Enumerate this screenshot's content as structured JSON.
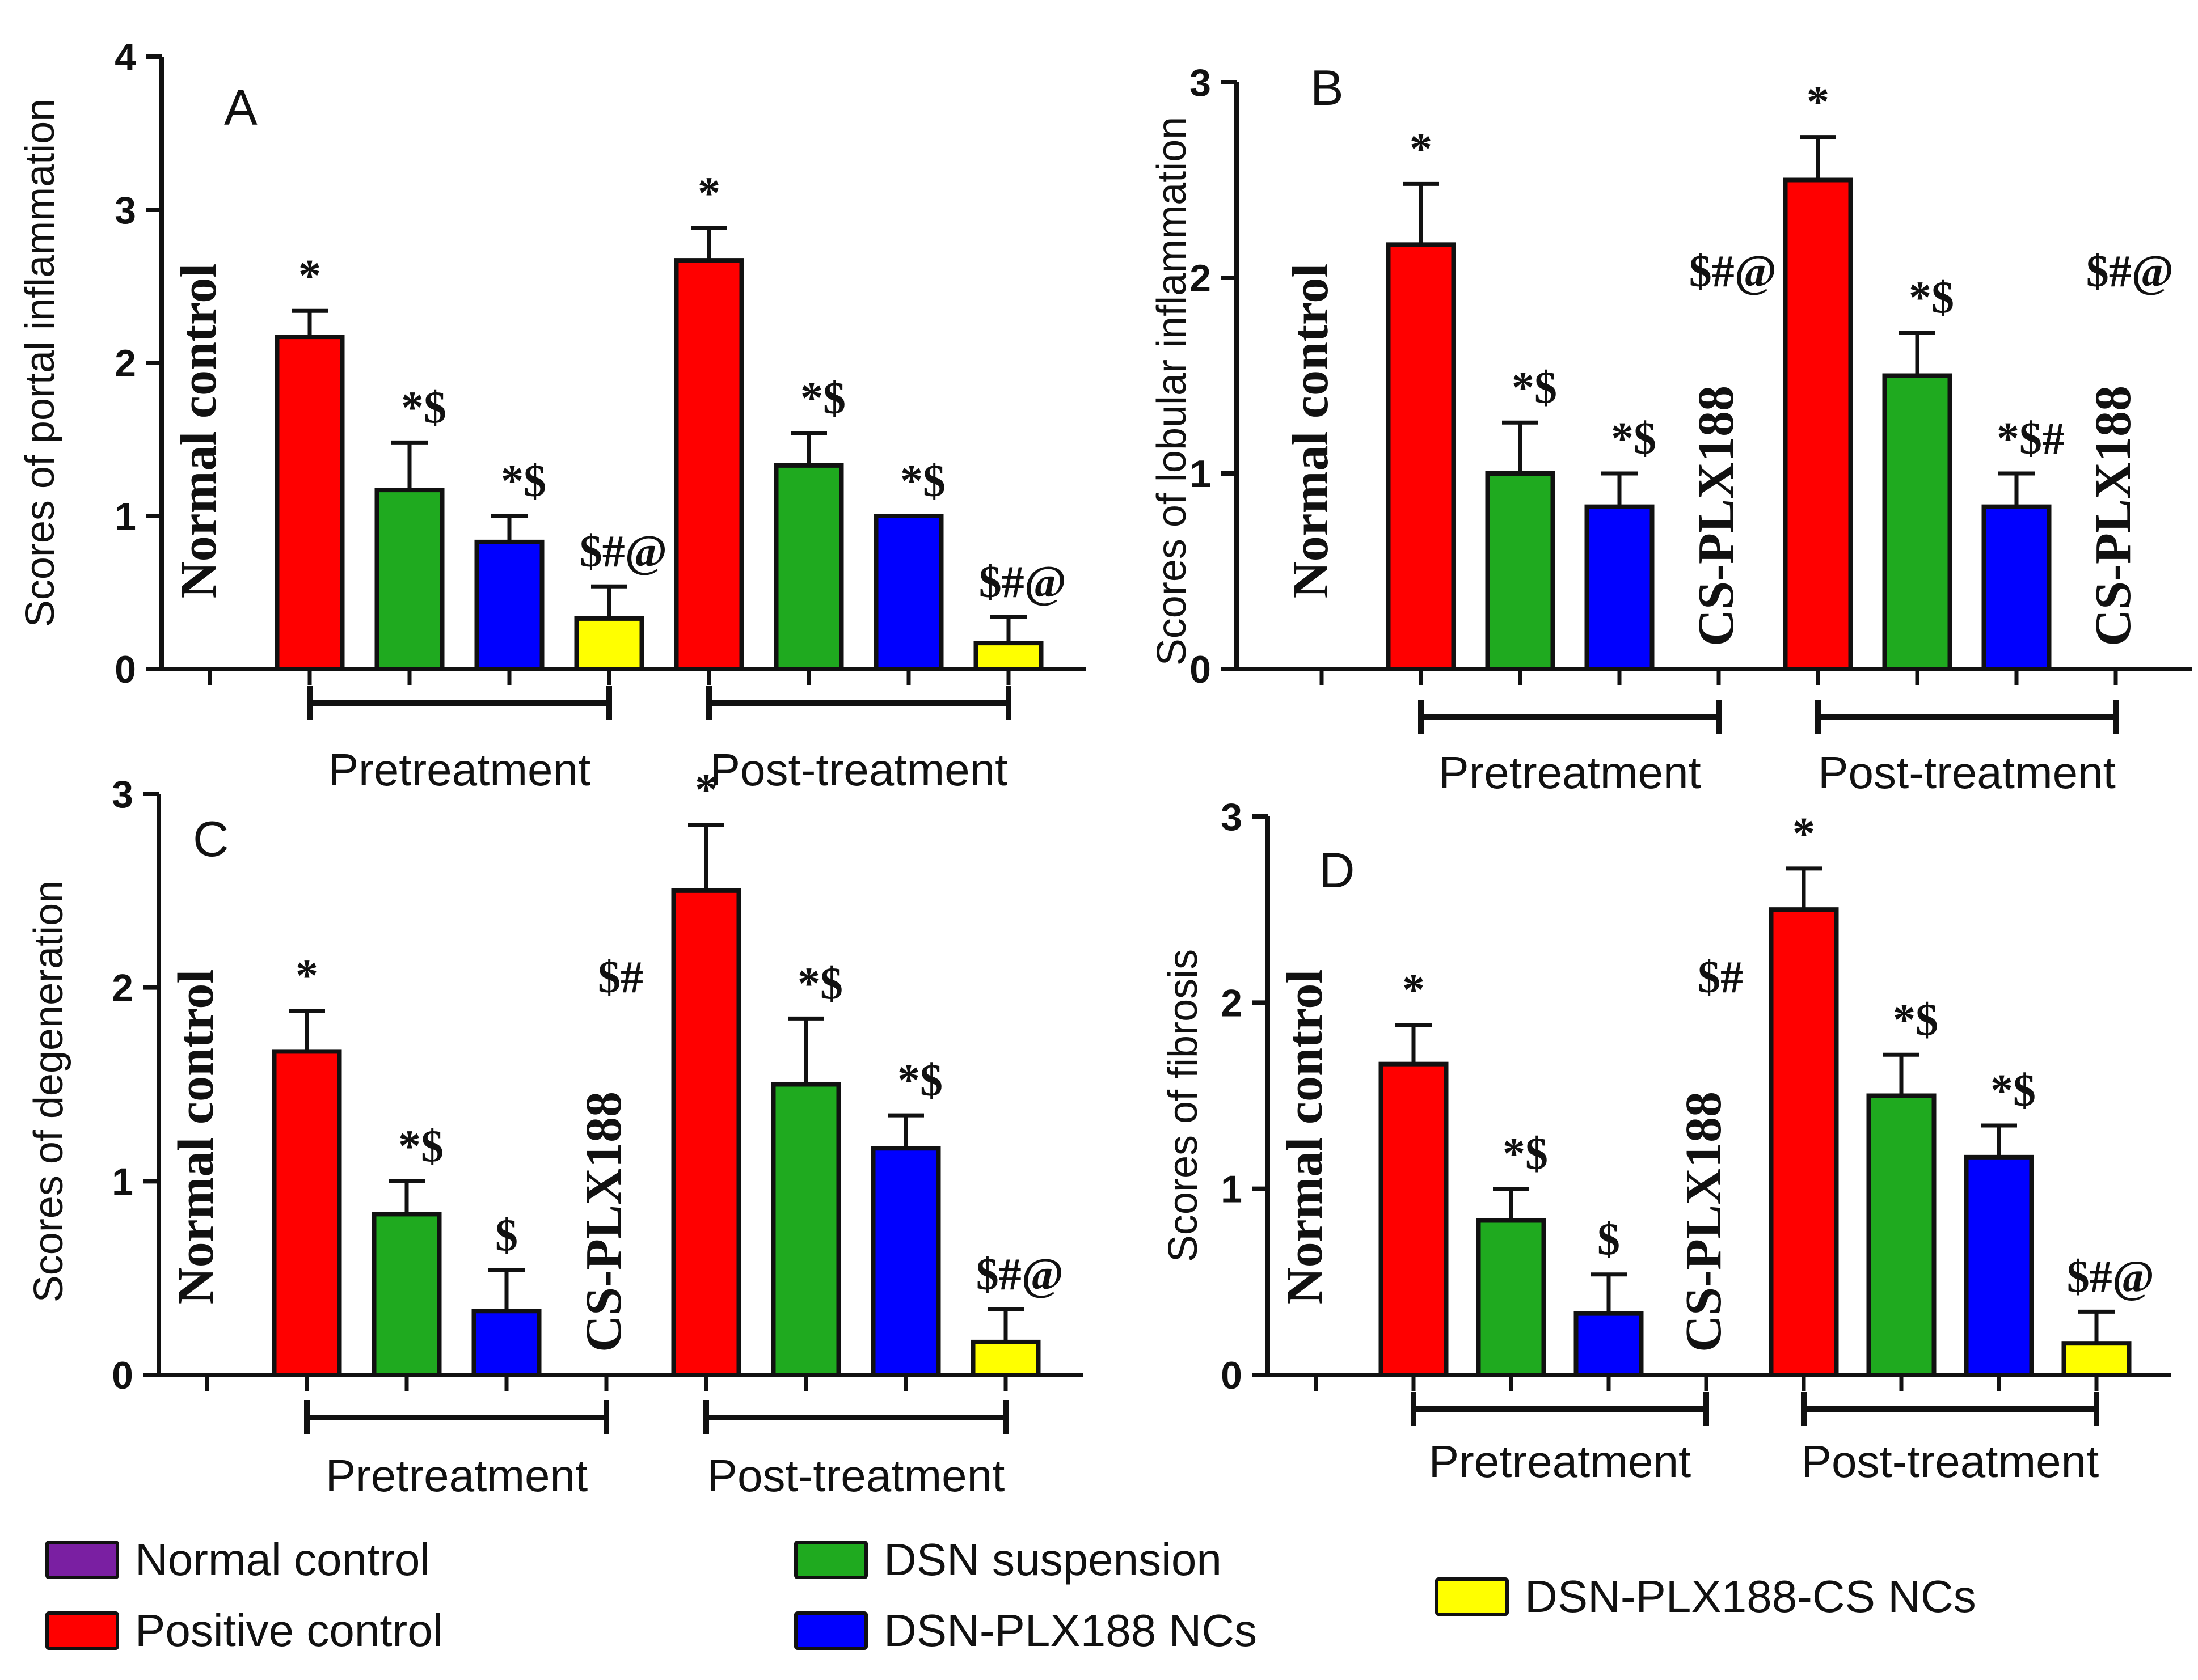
{
  "colors": {
    "normal_control": "#7a1fa2",
    "positive_control": "#ff0000",
    "dsn_suspension": "#1faa1f",
    "dsn_plx188": "#0000ff",
    "dsn_plx188_cs": "#ffff00",
    "axis": "#111111"
  },
  "legend": [
    {
      "key": "normal_control",
      "label": "Normal  control"
    },
    {
      "key": "positive_control",
      "label": "Positive  control"
    },
    {
      "key": "dsn_suspension",
      "label": "DSN  suspension"
    },
    {
      "key": "dsn_plx188",
      "label": "DSN-PLX188  NCs"
    },
    {
      "key": "dsn_plx188_cs",
      "label": "DSN-PLX188-CS  NCs"
    }
  ],
  "chart_data": [
    {
      "panel": "A",
      "type": "bar",
      "ylabel": "Scores  of  portal  inflammation",
      "ylim": [
        0,
        4
      ],
      "yticks": [
        "0",
        "1",
        "2",
        "3",
        "4"
      ],
      "group_labels": [
        "Pretreatment",
        "Post-treatment"
      ],
      "normal_control_label": "Normal control",
      "bars": [
        {
          "group": "pre",
          "series": "positive_control",
          "value": 2.17,
          "error": 0.17,
          "annotation": "*"
        },
        {
          "group": "pre",
          "series": "dsn_suspension",
          "value": 1.17,
          "error": 0.31,
          "annotation": "*$"
        },
        {
          "group": "pre",
          "series": "dsn_plx188",
          "value": 0.83,
          "error": 0.17,
          "annotation": "*$"
        },
        {
          "group": "pre",
          "series": "dsn_plx188_cs",
          "value": 0.33,
          "error": 0.21,
          "annotation": "$#@"
        },
        {
          "group": "post",
          "series": "positive_control",
          "value": 2.67,
          "error": 0.21,
          "annotation": "*"
        },
        {
          "group": "post",
          "series": "dsn_suspension",
          "value": 1.33,
          "error": 0.21,
          "annotation": "*$"
        },
        {
          "group": "post",
          "series": "dsn_plx188",
          "value": 1.0,
          "error": 0.0,
          "annotation": "*$"
        },
        {
          "group": "post",
          "series": "dsn_plx188_cs",
          "value": 0.17,
          "error": 0.17,
          "annotation": "$#@"
        }
      ]
    },
    {
      "panel": "B",
      "type": "bar",
      "ylabel": "Scores  of  lobular  inflammation",
      "ylim": [
        0,
        3
      ],
      "yticks": [
        "0",
        "1",
        "2",
        "3"
      ],
      "group_labels": [
        "Pretreatment",
        "Post-treatment"
      ],
      "normal_control_label": "Normal control",
      "bars": [
        {
          "group": "pre",
          "series": "positive_control",
          "value": 2.17,
          "error": 0.31,
          "annotation": "*"
        },
        {
          "group": "pre",
          "series": "dsn_suspension",
          "value": 1.0,
          "error": 0.26,
          "annotation": "*$"
        },
        {
          "group": "pre",
          "series": "dsn_plx188",
          "value": 0.83,
          "error": 0.17,
          "annotation": "*$"
        },
        {
          "group": "pre",
          "series": "dsn_plx188_cs",
          "value": 0,
          "error": 0,
          "annotation": "$#@",
          "label": "CS-PLX188"
        },
        {
          "group": "post",
          "series": "positive_control",
          "value": 2.5,
          "error": 0.22,
          "annotation": "*"
        },
        {
          "group": "post",
          "series": "dsn_suspension",
          "value": 1.5,
          "error": 0.22,
          "annotation": "*$"
        },
        {
          "group": "post",
          "series": "dsn_plx188",
          "value": 0.83,
          "error": 0.17,
          "annotation": "*$#"
        },
        {
          "group": "post",
          "series": "dsn_plx188_cs",
          "value": 0,
          "error": 0,
          "annotation": "$#@",
          "label": "CS-PLX188"
        }
      ]
    },
    {
      "panel": "C",
      "type": "bar",
      "ylabel": "Scores of degeneration",
      "ylim": [
        0,
        3
      ],
      "yticks": [
        "0",
        "1",
        "2",
        "3"
      ],
      "group_labels": [
        "Pretreatment",
        "Post-treatment"
      ],
      "normal_control_label": "Normal control",
      "bars": [
        {
          "group": "pre",
          "series": "positive_control",
          "value": 1.67,
          "error": 0.21,
          "annotation": "*"
        },
        {
          "group": "pre",
          "series": "dsn_suspension",
          "value": 0.83,
          "error": 0.17,
          "annotation": "*$"
        },
        {
          "group": "pre",
          "series": "dsn_plx188",
          "value": 0.33,
          "error": 0.21,
          "annotation": "$"
        },
        {
          "group": "pre",
          "series": "dsn_plx188_cs",
          "value": 0,
          "error": 0,
          "annotation": "$#",
          "label": "CS-PLX188"
        },
        {
          "group": "post",
          "series": "positive_control",
          "value": 2.5,
          "error": 0.34,
          "annotation": "*"
        },
        {
          "group": "post",
          "series": "dsn_suspension",
          "value": 1.5,
          "error": 0.34,
          "annotation": "*$"
        },
        {
          "group": "post",
          "series": "dsn_plx188",
          "value": 1.17,
          "error": 0.17,
          "annotation": "*$"
        },
        {
          "group": "post",
          "series": "dsn_plx188_cs",
          "value": 0.17,
          "error": 0.17,
          "annotation": "$#@"
        }
      ]
    },
    {
      "panel": "D",
      "type": "bar",
      "ylabel": "Scores of fibrosis",
      "ylim": [
        0,
        3
      ],
      "yticks": [
        "0",
        "1",
        "2",
        "3"
      ],
      "group_labels": [
        "Pretreatment",
        "Post-treatment"
      ],
      "normal_control_label": "Normal control",
      "bars": [
        {
          "group": "pre",
          "series": "positive_control",
          "value": 1.67,
          "error": 0.21,
          "annotation": "*"
        },
        {
          "group": "pre",
          "series": "dsn_suspension",
          "value": 0.83,
          "error": 0.17,
          "annotation": "*$"
        },
        {
          "group": "pre",
          "series": "dsn_plx188",
          "value": 0.33,
          "error": 0.21,
          "annotation": "$"
        },
        {
          "group": "pre",
          "series": "dsn_plx188_cs",
          "value": 0,
          "error": 0,
          "annotation": "$#",
          "label": "CS-PLX188"
        },
        {
          "group": "post",
          "series": "positive_control",
          "value": 2.5,
          "error": 0.22,
          "annotation": "*"
        },
        {
          "group": "post",
          "series": "dsn_suspension",
          "value": 1.5,
          "error": 0.22,
          "annotation": "*$"
        },
        {
          "group": "post",
          "series": "dsn_plx188",
          "value": 1.17,
          "error": 0.17,
          "annotation": "*$"
        },
        {
          "group": "post",
          "series": "dsn_plx188_cs",
          "value": 0.17,
          "error": 0.17,
          "annotation": "$#@"
        }
      ]
    }
  ]
}
